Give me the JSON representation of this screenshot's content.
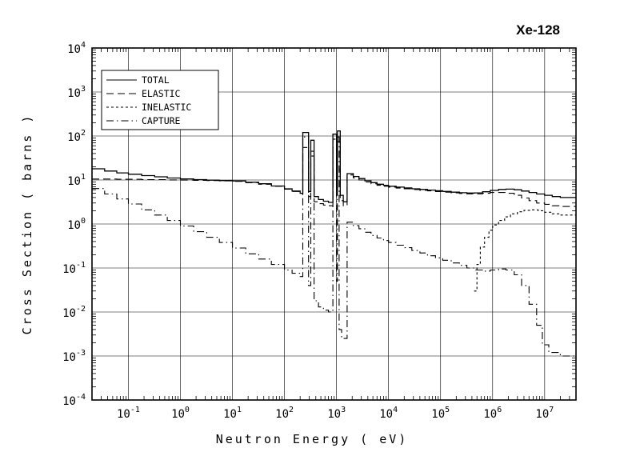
{
  "chart_data": {
    "type": "line",
    "title": "Xe-128",
    "xlabel": "Neutron Energy ( eV)",
    "ylabel": "Cross Section ( barns )",
    "xscale": "log",
    "yscale": "log",
    "xlim": [
      0.02,
      40000000
    ],
    "ylim": [
      0.0001,
      10000
    ],
    "x_tick_exponents": [
      -1,
      0,
      1,
      2,
      3,
      4,
      5,
      6,
      7
    ],
    "y_tick_exponents": [
      4,
      3,
      2,
      1,
      0,
      -1,
      -2,
      -3,
      -4
    ],
    "grid": true,
    "legend_position": "upper-left",
    "line_color": "#000000",
    "series": [
      {
        "name": "TOTAL",
        "style": "solid",
        "points": [
          [
            0.02,
            18
          ],
          [
            0.035,
            16
          ],
          [
            0.06,
            14.5
          ],
          [
            0.1,
            13.5
          ],
          [
            0.18,
            12.6
          ],
          [
            0.32,
            11.8
          ],
          [
            0.56,
            11.1
          ],
          [
            1.0,
            10.6
          ],
          [
            1.8,
            10.2
          ],
          [
            3.2,
            9.9
          ],
          [
            5.6,
            9.7
          ],
          [
            10,
            9.5
          ],
          [
            18,
            8.9
          ],
          [
            32,
            8.2
          ],
          [
            56,
            7.3
          ],
          [
            100,
            6.3
          ],
          [
            140,
            5.6
          ],
          [
            200,
            5.0
          ],
          [
            225,
            120
          ],
          [
            290,
            5.5
          ],
          [
            320,
            80
          ],
          [
            370,
            4.2
          ],
          [
            450,
            3.6
          ],
          [
            560,
            3.3
          ],
          [
            700,
            3.1
          ],
          [
            850,
            110
          ],
          [
            1000,
            6
          ],
          [
            1040,
            130
          ],
          [
            1180,
            4.5
          ],
          [
            1350,
            3.2
          ],
          [
            1600,
            14
          ],
          [
            2100,
            12
          ],
          [
            2700,
            10.8
          ],
          [
            3500,
            9.6
          ],
          [
            4600,
            8.7
          ],
          [
            6000,
            8.0
          ],
          [
            8000,
            7.6
          ],
          [
            10000,
            7.2
          ],
          [
            14000,
            6.9
          ],
          [
            20000,
            6.6
          ],
          [
            28000,
            6.3
          ],
          [
            40000,
            6.1
          ],
          [
            56000,
            5.9
          ],
          [
            80000,
            5.7
          ],
          [
            110000,
            5.5
          ],
          [
            160000,
            5.3
          ],
          [
            230000,
            5.15
          ],
          [
            320000,
            5.05
          ],
          [
            450000,
            5.1
          ],
          [
            640000,
            5.4
          ],
          [
            900000,
            5.8
          ],
          [
            1300000,
            6.1
          ],
          [
            1800000,
            6.2
          ],
          [
            2600000,
            6.0
          ],
          [
            3600000,
            5.6
          ],
          [
            5000000,
            5.2
          ],
          [
            7000000,
            4.8
          ],
          [
            10000000,
            4.5
          ],
          [
            14000000,
            4.2
          ],
          [
            20000000,
            4.0
          ],
          [
            40000000,
            3.9
          ]
        ]
      },
      {
        "name": "ELASTIC",
        "style": "long-dash",
        "points": [
          [
            0.02,
            10.5
          ],
          [
            0.06,
            10.4
          ],
          [
            0.18,
            10.2
          ],
          [
            0.56,
            10.05
          ],
          [
            1.0,
            9.95
          ],
          [
            1.8,
            9.85
          ],
          [
            3.2,
            9.7
          ],
          [
            5.6,
            9.55
          ],
          [
            10,
            9.3
          ],
          [
            18,
            8.7
          ],
          [
            32,
            8.0
          ],
          [
            56,
            7.2
          ],
          [
            100,
            6.2
          ],
          [
            140,
            5.5
          ],
          [
            200,
            4.9
          ],
          [
            225,
            55
          ],
          [
            290,
            4.2
          ],
          [
            320,
            35
          ],
          [
            370,
            3.2
          ],
          [
            450,
            2.9
          ],
          [
            560,
            2.7
          ],
          [
            700,
            2.6
          ],
          [
            850,
            60
          ],
          [
            1000,
            4.5
          ],
          [
            1040,
            75
          ],
          [
            1180,
            3.4
          ],
          [
            1350,
            2.6
          ],
          [
            1600,
            13
          ],
          [
            2100,
            11.2
          ],
          [
            2700,
            10
          ],
          [
            3500,
            9.0
          ],
          [
            4600,
            8.2
          ],
          [
            6000,
            7.6
          ],
          [
            8000,
            7.2
          ],
          [
            10000,
            6.85
          ],
          [
            14000,
            6.55
          ],
          [
            20000,
            6.3
          ],
          [
            28000,
            6.05
          ],
          [
            40000,
            5.85
          ],
          [
            56000,
            5.65
          ],
          [
            80000,
            5.45
          ],
          [
            110000,
            5.3
          ],
          [
            160000,
            5.1
          ],
          [
            230000,
            4.95
          ],
          [
            320000,
            4.85
          ],
          [
            450000,
            4.85
          ],
          [
            640000,
            5.0
          ],
          [
            900000,
            5.2
          ],
          [
            1300000,
            5.2
          ],
          [
            1800000,
            5.0
          ],
          [
            2600000,
            4.5
          ],
          [
            3600000,
            3.9
          ],
          [
            5000000,
            3.4
          ],
          [
            7000000,
            3.0
          ],
          [
            10000000,
            2.8
          ],
          [
            14000000,
            2.6
          ],
          [
            20000000,
            2.5
          ],
          [
            40000000,
            2.5
          ]
        ]
      },
      {
        "name": "INELASTIC",
        "style": "short-dash",
        "points": [
          [
            440000,
            0.03
          ],
          [
            500000,
            0.12
          ],
          [
            580000,
            0.3
          ],
          [
            700000,
            0.5
          ],
          [
            850000,
            0.72
          ],
          [
            1000000,
            0.95
          ],
          [
            1300000,
            1.2
          ],
          [
            1700000,
            1.45
          ],
          [
            2200000,
            1.7
          ],
          [
            3000000,
            1.9
          ],
          [
            4000000,
            2.05
          ],
          [
            5500000,
            2.1
          ],
          [
            7500000,
            2.0
          ],
          [
            10000000,
            1.85
          ],
          [
            14000000,
            1.7
          ],
          [
            20000000,
            1.6
          ],
          [
            40000000,
            1.55
          ]
        ]
      },
      {
        "name": "CAPTURE",
        "style": "dash-dot",
        "points": [
          [
            0.02,
            6.4
          ],
          [
            0.035,
            4.8
          ],
          [
            0.06,
            3.7
          ],
          [
            0.1,
            2.85
          ],
          [
            0.18,
            2.1
          ],
          [
            0.32,
            1.6
          ],
          [
            0.56,
            1.2
          ],
          [
            1.0,
            0.9
          ],
          [
            1.8,
            0.67
          ],
          [
            3.2,
            0.5
          ],
          [
            5.6,
            0.38
          ],
          [
            10,
            0.285
          ],
          [
            18,
            0.21
          ],
          [
            32,
            0.16
          ],
          [
            56,
            0.12
          ],
          [
            100,
            0.09
          ],
          [
            140,
            0.076
          ],
          [
            200,
            0.064
          ],
          [
            225,
            95
          ],
          [
            290,
            0.04
          ],
          [
            320,
            45
          ],
          [
            370,
            0.018
          ],
          [
            450,
            0.013
          ],
          [
            560,
            0.011
          ],
          [
            700,
            0.01
          ],
          [
            850,
            85
          ],
          [
            1000,
            0.05
          ],
          [
            1040,
            95
          ],
          [
            1120,
            0.004
          ],
          [
            1250,
            0.0025
          ],
          [
            1600,
            1.1
          ],
          [
            2100,
            0.92
          ],
          [
            2700,
            0.78
          ],
          [
            3500,
            0.65
          ],
          [
            4600,
            0.55
          ],
          [
            6000,
            0.48
          ],
          [
            8000,
            0.42
          ],
          [
            10000,
            0.38
          ],
          [
            14000,
            0.33
          ],
          [
            20000,
            0.29
          ],
          [
            28000,
            0.25
          ],
          [
            40000,
            0.22
          ],
          [
            56000,
            0.19
          ],
          [
            80000,
            0.17
          ],
          [
            110000,
            0.15
          ],
          [
            160000,
            0.13
          ],
          [
            230000,
            0.115
          ],
          [
            320000,
            0.1
          ],
          [
            450000,
            0.09
          ],
          [
            640000,
            0.085
          ],
          [
            900000,
            0.09
          ],
          [
            1300000,
            0.095
          ],
          [
            1800000,
            0.09
          ],
          [
            2600000,
            0.07
          ],
          [
            3600000,
            0.04
          ],
          [
            5000000,
            0.015
          ],
          [
            7000000,
            0.005
          ],
          [
            9000000,
            0.0018
          ],
          [
            12000000,
            0.0012
          ],
          [
            20000000,
            0.001
          ],
          [
            40000000,
            0.001
          ]
        ]
      }
    ]
  }
}
